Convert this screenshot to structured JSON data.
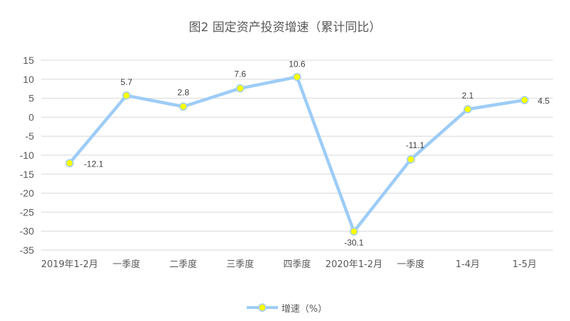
{
  "chart_data": {
    "type": "line",
    "title": "图2 固定资产投资增速（累计同比）",
    "xlabel": "",
    "ylabel": "",
    "categories": [
      "2019年1-2月",
      "一季度",
      "二季度",
      "三季度",
      "四季度",
      "2020年1-2月",
      "一季度",
      "1-4月",
      "1-5月"
    ],
    "series": [
      {
        "name": "增速（%）",
        "values": [
          -12.1,
          5.7,
          2.8,
          7.6,
          10.6,
          -30.1,
          -11.1,
          2.1,
          4.5
        ],
        "labels": [
          "-12.1",
          "5.7",
          "2.8",
          "7.6",
          "10.6",
          "-30.1",
          "-11.1",
          "2.1",
          "4.5"
        ],
        "line_color": "#9DCCF7",
        "marker_fill": "#FFFF00",
        "marker_edge": "#9DCCF7"
      }
    ],
    "yticks": [
      15,
      10,
      5,
      0,
      -5,
      -10,
      -15,
      -20,
      -25,
      -30,
      -35
    ],
    "ylim": [
      -35,
      15
    ],
    "grid": true,
    "legend_position": "bottom"
  },
  "title": "图2 固定资产投资增速（累计同比）",
  "legend": {
    "label": "增速（%）"
  },
  "colors": {
    "line": "#9DCCF7",
    "marker": "#FFFF00",
    "grid": "#D9D9D9",
    "text": "#595959"
  }
}
